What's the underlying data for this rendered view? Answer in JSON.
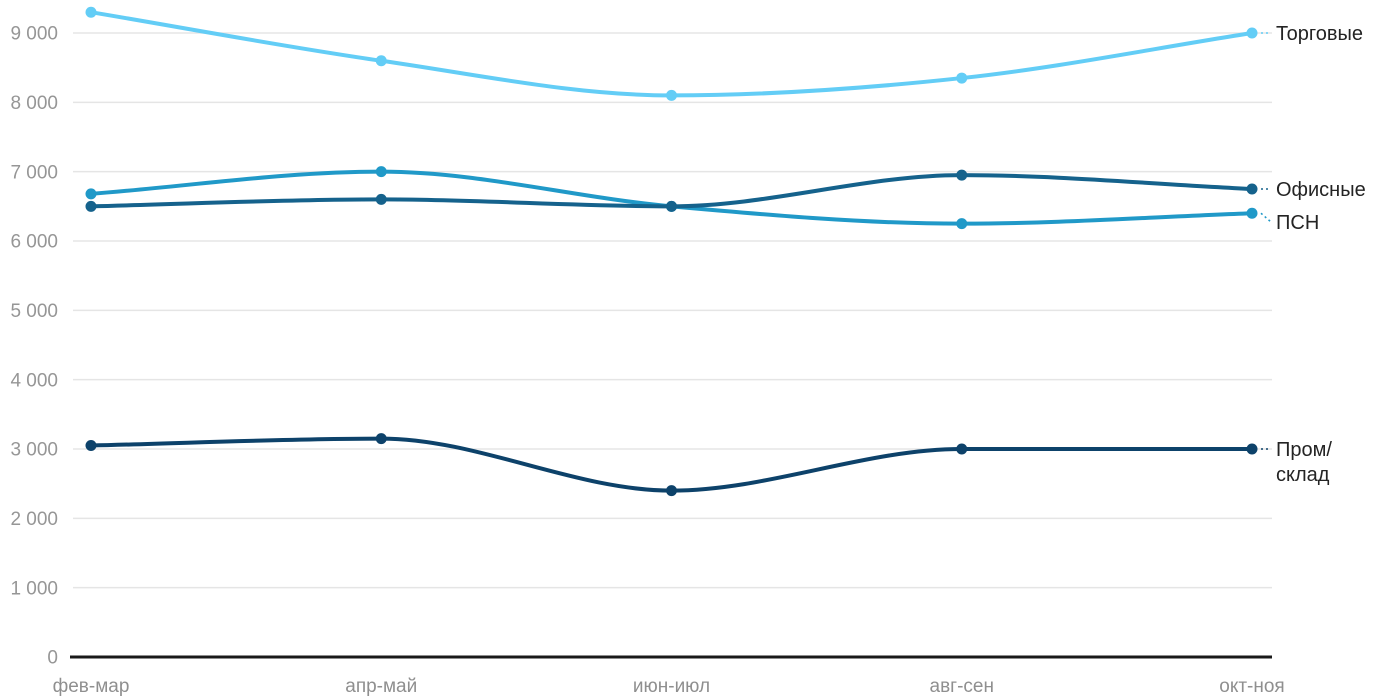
{
  "chart_data": {
    "type": "line",
    "title": "",
    "xlabel": "",
    "ylabel": "",
    "grid": true,
    "legend_position": "right-inline-labels",
    "ylim": [
      0,
      9500
    ],
    "yticks": [
      0,
      1000,
      2000,
      3000,
      4000,
      5000,
      6000,
      7000,
      8000,
      9000
    ],
    "ytick_labels": [
      "0",
      "1 000",
      "2 000",
      "3 000",
      "4 000",
      "5 000",
      "6 000",
      "7 000",
      "8 000",
      "9 000"
    ],
    "categories": [
      "фев-мар",
      "апр-май",
      "июн-июл",
      "авг-сен",
      "окт-ноя"
    ],
    "series": [
      {
        "name": "Торговые",
        "label_lines": [
          "Торговые"
        ],
        "color": "#63CDF6",
        "values": [
          9300,
          8600,
          8100,
          8350,
          9000
        ]
      },
      {
        "name": "Офисные",
        "label_lines": [
          "Офисные"
        ],
        "color": "#15628C",
        "values": [
          6500,
          6600,
          6500,
          6950,
          6750
        ]
      },
      {
        "name": "ПСН",
        "label_lines": [
          "ПСН"
        ],
        "color": "#2099C8",
        "values": [
          6680,
          7000,
          6500,
          6250,
          6400
        ]
      },
      {
        "name": "Пром/склад",
        "label_lines": [
          "Пром/",
          "склад"
        ],
        "color": "#0D426A",
        "values": [
          3050,
          3150,
          2400,
          3000,
          3000
        ]
      }
    ]
  },
  "colors": {
    "background": "#FFFFFF",
    "gridline": "#E5E5E5",
    "zero_axis": "#1A1A1A",
    "ytick_label": "#969696",
    "xtick_label": "#8F8F8F",
    "series_label": "#242424"
  }
}
